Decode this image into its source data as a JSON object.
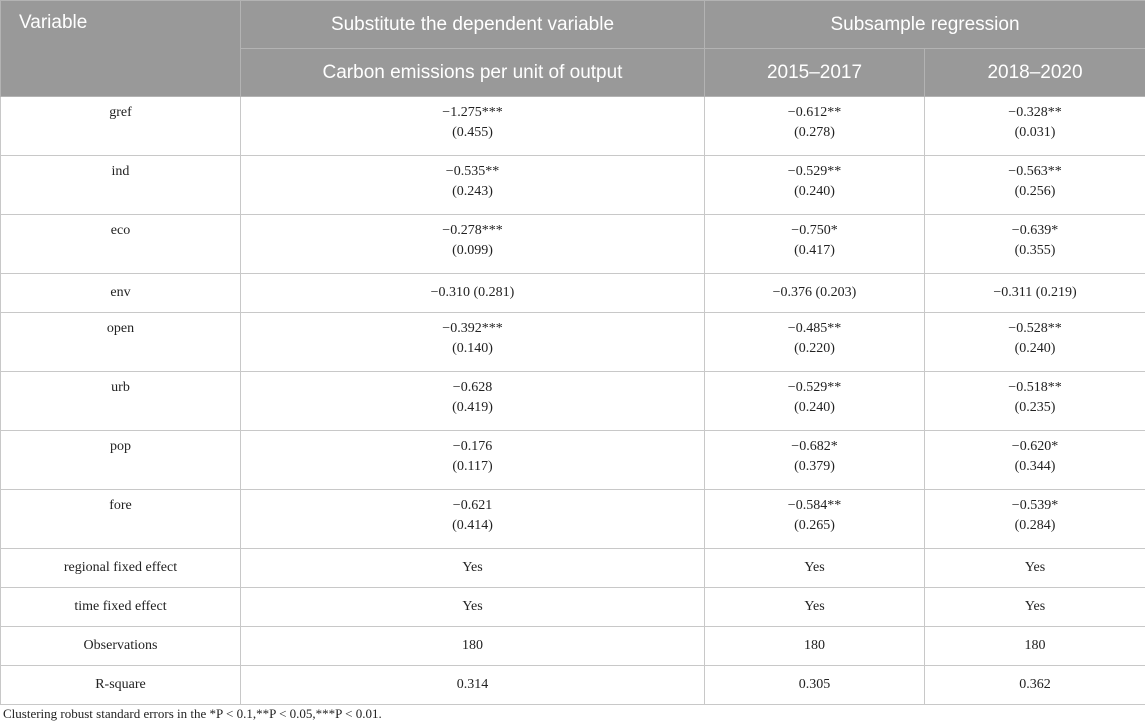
{
  "header": {
    "variable": "Variable",
    "substitute_group": "Substitute the dependent variable",
    "subsample_group": "Subsample regression",
    "col_carbon": "Carbon emissions per unit of output",
    "col_2015": "2015–2017",
    "col_2018": "2018–2020"
  },
  "rows": [
    {
      "label": "gref",
      "c1": [
        "−1.275***",
        "(0.455)"
      ],
      "c2": [
        "−0.612**",
        "(0.278)"
      ],
      "c3": [
        "−0.328**",
        "(0.031)"
      ]
    },
    {
      "label": "ind",
      "c1": [
        "−0.535**",
        "(0.243)"
      ],
      "c2": [
        "−0.529**",
        "(0.240)"
      ],
      "c3": [
        "−0.563**",
        "(0.256)"
      ]
    },
    {
      "label": "eco",
      "c1": [
        "−0.278***",
        "(0.099)"
      ],
      "c2": [
        "−0.750*",
        "(0.417)"
      ],
      "c3": [
        "−0.639*",
        "(0.355)"
      ]
    },
    {
      "label": "env",
      "c1": [
        "−0.310 (0.281)"
      ],
      "c2": [
        "−0.376 (0.203)"
      ],
      "c3": [
        "−0.311 (0.219)"
      ]
    },
    {
      "label": "open",
      "c1": [
        "−0.392***",
        "(0.140)"
      ],
      "c2": [
        "−0.485**",
        "(0.220)"
      ],
      "c3": [
        "−0.528**",
        "(0.240)"
      ]
    },
    {
      "label": "urb",
      "c1": [
        "−0.628",
        "(0.419)"
      ],
      "c2": [
        "−0.529**",
        "(0.240)"
      ],
      "c3": [
        "−0.518**",
        "(0.235)"
      ]
    },
    {
      "label": "pop",
      "c1": [
        "−0.176",
        "(0.117)"
      ],
      "c2": [
        "−0.682*",
        "(0.379)"
      ],
      "c3": [
        "−0.620*",
        "(0.344)"
      ]
    },
    {
      "label": "fore",
      "c1": [
        "−0.621",
        "(0.414)"
      ],
      "c2": [
        "−0.584**",
        "(0.265)"
      ],
      "c3": [
        "−0.539*",
        "(0.284)"
      ]
    },
    {
      "label": "regional fixed effect",
      "c1": [
        "Yes"
      ],
      "c2": [
        "Yes"
      ],
      "c3": [
        "Yes"
      ]
    },
    {
      "label": "time fixed effect",
      "c1": [
        "Yes"
      ],
      "c2": [
        "Yes"
      ],
      "c3": [
        "Yes"
      ]
    },
    {
      "label": "Observations",
      "c1": [
        "180"
      ],
      "c2": [
        "180"
      ],
      "c3": [
        "180"
      ]
    },
    {
      "label": "R-square",
      "c1": [
        "0.314"
      ],
      "c2": [
        "0.305"
      ],
      "c3": [
        "0.362"
      ]
    }
  ],
  "footnote": "Clustering robust standard errors in the *P < 0.1,**P < 0.05,***P < 0.01."
}
